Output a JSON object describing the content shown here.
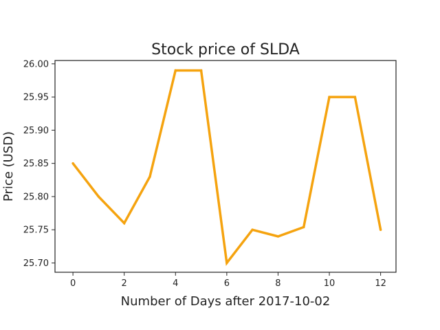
{
  "chart_data": {
    "type": "line",
    "title": "Stock price of SLDA",
    "xlabel": "Number of Days after 2017-10-02",
    "ylabel": "Price (USD)",
    "x": [
      0,
      1,
      2,
      3,
      4,
      5,
      6,
      7,
      8,
      9,
      10,
      11,
      12
    ],
    "series": [
      {
        "values": [
          25.85,
          25.8,
          25.76,
          25.83,
          25.99,
          25.99,
          25.7,
          25.75,
          25.74,
          25.754,
          25.95,
          25.95,
          25.75
        ],
        "color": "#f5a30f"
      }
    ],
    "xlim": [
      -0.7,
      12.6
    ],
    "ylim": [
      25.686,
      26.005
    ],
    "xticks": [
      0,
      2,
      4,
      6,
      8,
      10,
      12
    ],
    "xtick_labels": [
      "0",
      "2",
      "4",
      "6",
      "8",
      "10",
      "12"
    ],
    "yticks": [
      25.7,
      25.75,
      25.8,
      25.85,
      25.9,
      25.95,
      26.0
    ],
    "ytick_labels": [
      "25.70",
      "25.75",
      "25.80",
      "25.85",
      "25.90",
      "25.95",
      "26.00"
    ],
    "grid": false,
    "legend": "none"
  }
}
